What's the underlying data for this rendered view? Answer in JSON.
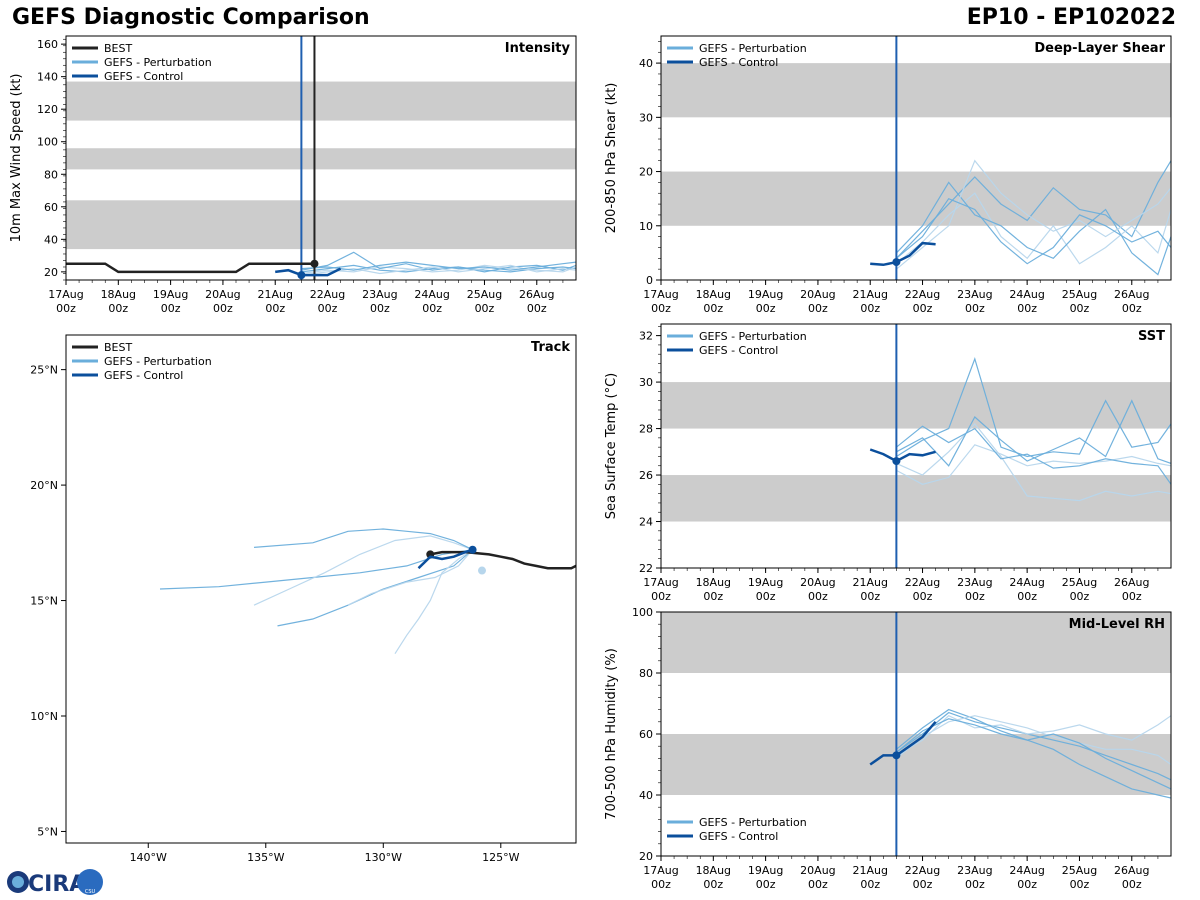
{
  "header": {
    "title_left": "GEFS Diagnostic Comparison",
    "title_right": "EP10 - EP102022"
  },
  "logo": {
    "text": "CIRA",
    "sub": "CSU"
  },
  "colors": {
    "best": "#222222",
    "control": "#0b4f9c",
    "perturbation": "#6aaedb",
    "perturbation_light": "#b7d6ec",
    "shade": "#cccccc",
    "init_line_intensity": "#1f5fb0"
  },
  "chart_data": [
    {
      "id": "intensity",
      "type": "line",
      "title": "Intensity",
      "ylabel": "10m Max Wind Speed (kt)",
      "ylim": [
        15,
        165
      ],
      "yticks": [
        20,
        40,
        60,
        80,
        100,
        120,
        140,
        160
      ],
      "xlim": [
        0,
        9.75
      ],
      "xticks": [
        0,
        1,
        2,
        3,
        4,
        5,
        6,
        7,
        8,
        9
      ],
      "xtick_labels": [
        "17Aug\n00z",
        "18Aug\n00z",
        "19Aug\n00z",
        "20Aug\n00z",
        "21Aug\n00z",
        "22Aug\n00z",
        "23Aug\n00z",
        "24Aug\n00z",
        "25Aug\n00z",
        "26Aug\n00z"
      ],
      "bands": [
        [
          34,
          64
        ],
        [
          83,
          96
        ],
        [
          113,
          137
        ]
      ],
      "vlines": [
        {
          "x": 4.5,
          "color": "control"
        },
        {
          "x": 4.75,
          "color": "best"
        }
      ],
      "legend": [
        "BEST",
        "GEFS - Perturbation",
        "GEFS - Control"
      ],
      "best": {
        "x": [
          0,
          0.25,
          0.5,
          0.75,
          1,
          1.25,
          1.5,
          2,
          2.5,
          3,
          3.25,
          3.5,
          3.75,
          4,
          4.25,
          4.5,
          4.75
        ],
        "y": [
          25,
          25,
          25,
          25,
          20,
          20,
          20,
          20,
          20,
          20,
          20,
          25,
          25,
          25,
          25,
          25,
          25
        ]
      },
      "best_marker": {
        "x": 4.75,
        "y": 25
      },
      "control": {
        "x": [
          4,
          4.25,
          4.5,
          4.75,
          5,
          5.25
        ],
        "y": [
          20,
          21,
          18,
          18,
          18,
          22
        ]
      },
      "control_marker": {
        "x": 4.5,
        "y": 18
      },
      "perturbation": [
        {
          "x": [
            4.5,
            5,
            5.5,
            6,
            6.5,
            7,
            7.5,
            8,
            8.5,
            9,
            9.5,
            9.75
          ],
          "y": [
            20,
            22,
            24,
            21,
            20,
            22,
            23,
            21,
            20,
            22,
            23,
            22
          ]
        },
        {
          "x": [
            4.5,
            5,
            5.5,
            6,
            6.5,
            7,
            7.5,
            8,
            8.5,
            9,
            9.5,
            9.75
          ],
          "y": [
            19,
            21,
            20,
            23,
            22,
            20,
            21,
            24,
            22,
            21,
            20,
            23
          ]
        },
        {
          "x": [
            4.5,
            5,
            5.5,
            6,
            6.5,
            7,
            7.5,
            8,
            8.5,
            9,
            9.5,
            9.75
          ],
          "y": [
            21,
            24,
            32,
            22,
            25,
            21,
            23,
            20,
            23,
            24,
            21,
            24
          ]
        },
        {
          "x": [
            4.5,
            5,
            5.5,
            6,
            6.5,
            7,
            7.5,
            8,
            8.5,
            9,
            9.5,
            9.75
          ],
          "y": [
            18,
            20,
            22,
            19,
            21,
            23,
            20,
            22,
            24,
            20,
            22,
            21
          ]
        },
        {
          "x": [
            4.5,
            5,
            5.5,
            6,
            6.5,
            7,
            7.5,
            8,
            8.5,
            9,
            9.5,
            9.75
          ],
          "y": [
            22,
            23,
            21,
            24,
            26,
            24,
            22,
            23,
            21,
            23,
            25,
            26
          ]
        }
      ]
    },
    {
      "id": "shear",
      "type": "line",
      "title": "Deep-Layer Shear",
      "ylabel": "200-850 hPa Shear (kt)",
      "ylim": [
        0,
        45
      ],
      "yticks": [
        0,
        10,
        20,
        30,
        40
      ],
      "xlim": [
        0,
        9.75
      ],
      "xticks": [
        0,
        1,
        2,
        3,
        4,
        5,
        6,
        7,
        8,
        9
      ],
      "xtick_labels": [
        "17Aug\n00z",
        "18Aug\n00z",
        "19Aug\n00z",
        "20Aug\n00z",
        "21Aug\n00z",
        "22Aug\n00z",
        "23Aug\n00z",
        "24Aug\n00z",
        "25Aug\n00z",
        "26Aug\n00z"
      ],
      "bands": [
        [
          10,
          20
        ],
        [
          30,
          40
        ]
      ],
      "vlines": [
        {
          "x": 4.5,
          "color": "control"
        }
      ],
      "legend": [
        "GEFS - Perturbation",
        "GEFS - Control"
      ],
      "control": {
        "x": [
          4,
          4.25,
          4.5,
          4.75,
          5,
          5.25
        ],
        "y": [
          3,
          2.8,
          3.3,
          4.5,
          6.8,
          6.6
        ]
      },
      "control_marker": {
        "x": 4.5,
        "y": 3.3
      },
      "perturbation": [
        {
          "x": [
            4.5,
            5,
            5.5,
            6,
            6.5,
            7,
            7.5,
            8,
            8.5,
            9,
            9.5,
            9.75
          ],
          "y": [
            4,
            9,
            14,
            19,
            14,
            11,
            17,
            13,
            12,
            8,
            18,
            22
          ]
        },
        {
          "x": [
            4.5,
            5,
            5.5,
            6,
            6.5,
            7,
            7.5,
            8,
            8.5,
            9,
            9.5,
            9.75
          ],
          "y": [
            3,
            7,
            12,
            16,
            8,
            4,
            10,
            3,
            6,
            10,
            5,
            13
          ]
        },
        {
          "x": [
            4.5,
            5,
            5.5,
            6,
            6.5,
            7,
            7.5,
            8,
            8.5,
            9,
            9.5,
            9.75
          ],
          "y": [
            5,
            10,
            18,
            12,
            10,
            6,
            4,
            9,
            13,
            5,
            1,
            8
          ]
        },
        {
          "x": [
            4.5,
            5,
            5.5,
            6,
            6.5,
            7,
            7.5,
            8,
            8.5,
            9,
            9.5,
            9.75
          ],
          "y": [
            2,
            6,
            10,
            22,
            16,
            12,
            9,
            11,
            8,
            11,
            14,
            17
          ]
        },
        {
          "x": [
            4.5,
            5,
            5.5,
            6,
            6.5,
            7,
            7.5,
            8,
            8.5,
            9,
            9.5,
            9.75
          ],
          "y": [
            4,
            8,
            15,
            13,
            7,
            3,
            6,
            12,
            10,
            7,
            9,
            6
          ]
        }
      ]
    },
    {
      "id": "track",
      "type": "line",
      "title": "Track",
      "xlim": [
        -143.5,
        -121.8
      ],
      "ylim": [
        4.5,
        26.5
      ],
      "xticks": [
        -140,
        -135,
        -130,
        -125
      ],
      "xtick_labels": [
        "140°W",
        "135°W",
        "130°W",
        "125°W"
      ],
      "yticks": [
        5,
        10,
        15,
        20,
        25
      ],
      "ytick_labels": [
        "5°N",
        "10°N",
        "15°N",
        "20°N",
        "25°N"
      ],
      "legend": [
        "BEST",
        "GEFS - Perturbation",
        "GEFS - Control"
      ],
      "best": {
        "lon": [
          -128,
          -127.5,
          -127,
          -126.5,
          -126,
          -125.5,
          -125,
          -124.5,
          -124,
          -123.5,
          -123,
          -122.5,
          -122,
          -121.8
        ],
        "lat": [
          17,
          17.1,
          17.1,
          17.1,
          17.05,
          17,
          16.9,
          16.8,
          16.6,
          16.5,
          16.4,
          16.4,
          16.4,
          16.5
        ]
      },
      "best_marker": {
        "lon": -128,
        "lat": 17
      },
      "control": {
        "lon": [
          -128.5,
          -128,
          -127.5,
          -127,
          -126.5,
          -126.2
        ],
        "lat": [
          16.4,
          16.9,
          16.8,
          16.9,
          17.1,
          17.2
        ]
      },
      "control_marker": {
        "lon": -126.2,
        "lat": 17.2
      },
      "perturbation": [
        {
          "lon": [
            -126.2,
            -127.5,
            -129,
            -131,
            -133,
            -135,
            -137,
            -139.5
          ],
          "lat": [
            17.2,
            17,
            16.5,
            16.2,
            16,
            15.8,
            15.6,
            15.5
          ]
        },
        {
          "lon": [
            -126.2,
            -127,
            -128,
            -129.5,
            -131,
            -132.5,
            -134,
            -135.5
          ],
          "lat": [
            17.2,
            17.5,
            17.8,
            17.6,
            17,
            16.2,
            15.5,
            14.8
          ]
        },
        {
          "lon": [
            -126.2,
            -127,
            -128.5,
            -130,
            -131.5,
            -133,
            -134.5
          ],
          "lat": [
            17.2,
            16.5,
            16,
            15.5,
            14.8,
            14.2,
            13.9
          ]
        },
        {
          "lon": [
            -126.2,
            -126.8,
            -127.5,
            -128,
            -128.5,
            -129,
            -129.5
          ],
          "lat": [
            17.2,
            16.8,
            16.2,
            15,
            14.2,
            13.5,
            12.7
          ]
        },
        {
          "lon": [
            -126.2,
            -127,
            -128,
            -129,
            -130,
            -131.5,
            -133,
            -135.5
          ],
          "lat": [
            17.2,
            17.6,
            17.9,
            18,
            18.1,
            18,
            17.5,
            17.3
          ]
        },
        {
          "lon": [
            -126.2,
            -126.8,
            -127.8,
            -129,
            -130.5,
            -131.5
          ],
          "lat": [
            17.2,
            16.5,
            16,
            15.8,
            15.3,
            14.8
          ]
        }
      ],
      "perturbation_end_marker": {
        "lon": -125.8,
        "lat": 16.3
      }
    },
    {
      "id": "sst",
      "type": "line",
      "title": "SST",
      "ylabel": "Sea Surface Temp (°C)",
      "ylim": [
        22,
        32.5
      ],
      "yticks": [
        22,
        24,
        26,
        28,
        30,
        32
      ],
      "xlim": [
        0,
        9.75
      ],
      "xticks": [
        0,
        1,
        2,
        3,
        4,
        5,
        6,
        7,
        8,
        9
      ],
      "xtick_labels": [
        "17Aug\n00z",
        "18Aug\n00z",
        "19Aug\n00z",
        "20Aug\n00z",
        "21Aug\n00z",
        "22Aug\n00z",
        "23Aug\n00z",
        "24Aug\n00z",
        "25Aug\n00z",
        "26Aug\n00z"
      ],
      "bands": [
        [
          24,
          26
        ],
        [
          28,
          30
        ]
      ],
      "vlines": [
        {
          "x": 4.5,
          "color": "control"
        }
      ],
      "legend": [
        "GEFS - Perturbation",
        "GEFS - Control"
      ],
      "control": {
        "x": [
          4,
          4.25,
          4.5,
          4.75,
          5,
          5.25
        ],
        "y": [
          27.1,
          26.9,
          26.6,
          26.9,
          26.85,
          27
        ]
      },
      "control_marker": {
        "x": 4.5,
        "y": 26.6
      },
      "perturbation": [
        {
          "x": [
            4.5,
            5,
            5.5,
            6,
            6.5,
            7,
            7.5,
            8,
            8.5,
            9,
            9.5,
            9.75
          ],
          "y": [
            26.8,
            27.5,
            28,
            31,
            27.2,
            26.8,
            27,
            26.9,
            29.2,
            27.2,
            27.4,
            28.2
          ]
        },
        {
          "x": [
            4.5,
            5,
            5.5,
            6,
            6.5,
            7,
            7.5,
            8,
            8.5,
            9,
            9.5,
            9.75
          ],
          "y": [
            26.5,
            26,
            27,
            28.2,
            26.8,
            25.1,
            25,
            24.9,
            25.3,
            25.1,
            25.3,
            25.2
          ]
        },
        {
          "x": [
            4.5,
            5,
            5.5,
            6,
            6.5,
            7,
            7.5,
            8,
            8.5,
            9,
            9.5,
            9.75
          ],
          "y": [
            27,
            27.6,
            26.4,
            28.5,
            27.5,
            26.6,
            27.1,
            27.6,
            26.8,
            29.2,
            26.7,
            26.5
          ]
        },
        {
          "x": [
            4.5,
            5,
            5.5,
            6,
            6.5,
            7,
            7.5,
            8,
            8.5,
            9,
            9.5,
            9.75
          ],
          "y": [
            26.2,
            25.6,
            25.9,
            27.3,
            26.9,
            26.4,
            26.6,
            26.5,
            26.6,
            26.8,
            26.5,
            26.4
          ]
        },
        {
          "x": [
            4.5,
            5,
            5.5,
            6,
            6.5,
            7,
            7.5,
            8,
            8.5,
            9,
            9.5,
            9.75
          ],
          "y": [
            27.2,
            28.1,
            27.4,
            28,
            26.7,
            26.9,
            26.3,
            26.4,
            26.7,
            26.5,
            26.4,
            25.6
          ]
        }
      ]
    },
    {
      "id": "rh",
      "type": "line",
      "title": "Mid-Level RH",
      "ylabel": "700-500 hPa Humidity (%)",
      "ylim": [
        20,
        100
      ],
      "yticks": [
        20,
        40,
        60,
        80,
        100
      ],
      "xlim": [
        0,
        9.75
      ],
      "xticks": [
        0,
        1,
        2,
        3,
        4,
        5,
        6,
        7,
        8,
        9
      ],
      "xtick_labels": [
        "17Aug\n00z",
        "18Aug\n00z",
        "19Aug\n00z",
        "20Aug\n00z",
        "21Aug\n00z",
        "22Aug\n00z",
        "23Aug\n00z",
        "24Aug\n00z",
        "25Aug\n00z",
        "26Aug\n00z"
      ],
      "bands": [
        [
          40,
          60
        ],
        [
          80,
          100
        ]
      ],
      "vlines": [
        {
          "x": 4.5,
          "color": "control"
        }
      ],
      "legend": [
        "GEFS - Perturbation",
        "GEFS - Control"
      ],
      "control": {
        "x": [
          4,
          4.25,
          4.5,
          4.75,
          5,
          5.25
        ],
        "y": [
          50,
          53,
          53,
          56,
          59,
          64
        ]
      },
      "control_marker": {
        "x": 4.5,
        "y": 53
      },
      "perturbation": [
        {
          "x": [
            4.5,
            5,
            5.5,
            6,
            6.5,
            7,
            7.5,
            8,
            8.5,
            9,
            9.5,
            9.75
          ],
          "y": [
            54,
            60,
            67,
            64,
            62,
            60,
            58,
            56,
            53,
            50,
            47,
            45
          ]
        },
        {
          "x": [
            4.5,
            5,
            5.5,
            6,
            6.5,
            7,
            7.5,
            8,
            8.5,
            9,
            9.5,
            9.75
          ],
          "y": [
            53,
            58,
            66,
            62,
            63,
            60,
            61,
            63,
            60,
            58,
            63,
            66
          ]
        },
        {
          "x": [
            4.5,
            5,
            5.5,
            6,
            6.5,
            7,
            7.5,
            8,
            8.5,
            9,
            9.5,
            9.75
          ],
          "y": [
            55,
            62,
            68,
            65,
            61,
            58,
            55,
            50,
            46,
            42,
            40,
            39
          ]
        },
        {
          "x": [
            4.5,
            5,
            5.5,
            6,
            6.5,
            7,
            7.5,
            8,
            8.5,
            9,
            9.5,
            9.75
          ],
          "y": [
            52,
            59,
            64,
            66,
            64,
            62,
            59,
            57,
            55,
            55,
            53,
            50
          ]
        },
        {
          "x": [
            4.5,
            5,
            5.5,
            6,
            6.5,
            7,
            7.5,
            8,
            8.5,
            9,
            9.5,
            9.75
          ],
          "y": [
            54,
            61,
            65,
            63,
            60,
            58,
            60,
            57,
            52,
            48,
            44,
            42
          ]
        }
      ]
    }
  ]
}
